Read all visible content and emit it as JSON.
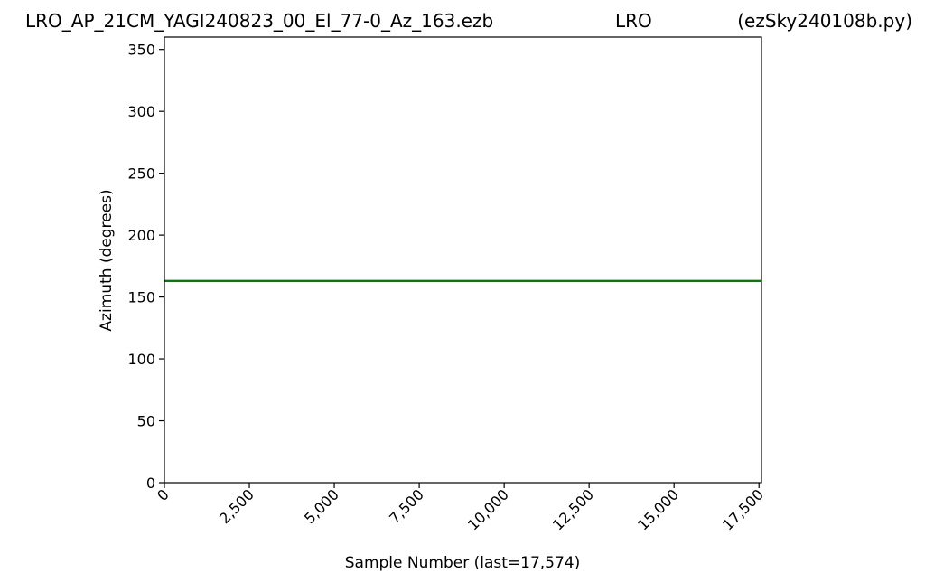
{
  "header": {
    "file": "LRO_AP_21CM_YAGI240823_00_El_77-0_Az_163.ezb",
    "station": "LRO",
    "program": "(ezSky240108b.py)"
  },
  "colors": {
    "line": "#008000",
    "axes": "#000000",
    "background": "#ffffff"
  },
  "chart_data": {
    "type": "line",
    "xlabel": "Sample Number (last=17,574)",
    "ylabel": "Azimuth (degrees)",
    "xlim": [
      0,
      17574
    ],
    "ylim": [
      0,
      360
    ],
    "xticks": [
      0,
      2500,
      5000,
      7500,
      10000,
      12500,
      15000,
      17500
    ],
    "xtick_labels": [
      "0",
      "2,500",
      "5,000",
      "7,500",
      "10,000",
      "12,500",
      "15,000",
      "17,500"
    ],
    "yticks": [
      0,
      50,
      100,
      150,
      200,
      250,
      300,
      350
    ],
    "ytick_labels": [
      "0",
      "50",
      "100",
      "150",
      "200",
      "250",
      "300",
      "350"
    ],
    "grid": false,
    "series": [
      {
        "x": [
          0,
          17574
        ],
        "values": [
          163,
          163
        ],
        "color": "#008000"
      }
    ]
  }
}
